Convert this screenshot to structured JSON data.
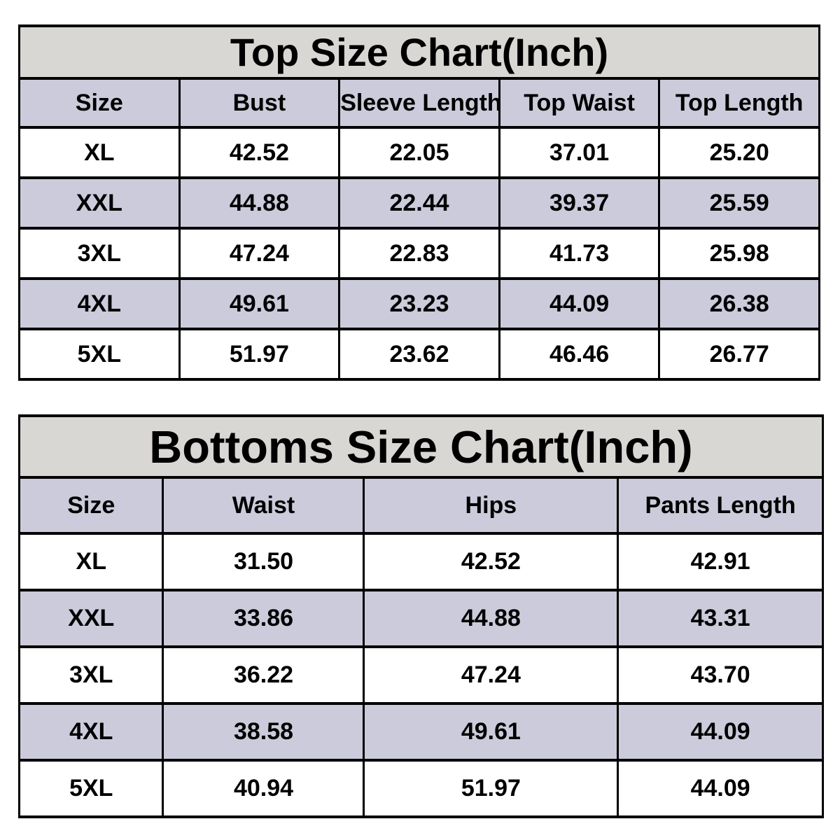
{
  "page": {
    "background": "#ffffff",
    "description_colors": {
      "title_bar_bg": "#d8d7d4",
      "header_and_alt_row_bg": "#cbcbdb",
      "row_bg": "#ffffff",
      "border": "#000000",
      "text": "#000000"
    }
  },
  "chart_data": [
    {
      "type": "table",
      "title": "Top Size Chart(Inch)",
      "columns": [
        "Size",
        "Bust",
        "Sleeve Length",
        "Top Waist",
        "Top Length"
      ],
      "rows": [
        [
          "XL",
          "42.52",
          "22.05",
          "37.01",
          "25.20"
        ],
        [
          "XXL",
          "44.88",
          "22.44",
          "39.37",
          "25.59"
        ],
        [
          "3XL",
          "47.24",
          "22.83",
          "41.73",
          "25.98"
        ],
        [
          "4XL",
          "49.61",
          "23.23",
          "44.09",
          "26.38"
        ],
        [
          "5XL",
          "51.97",
          "23.62",
          "46.46",
          "26.77"
        ]
      ],
      "layout": {
        "alternating_rows": "even rows shaded lavender",
        "all_text_bold": true,
        "units": "Inch"
      }
    },
    {
      "type": "table",
      "title": "Bottoms Size Chart(Inch)",
      "columns": [
        "Size",
        "Waist",
        "Hips",
        "Pants Length"
      ],
      "rows": [
        [
          "XL",
          "31.50",
          "42.52",
          "42.91"
        ],
        [
          "XXL",
          "33.86",
          "44.88",
          "43.31"
        ],
        [
          "3XL",
          "36.22",
          "47.24",
          "43.70"
        ],
        [
          "4XL",
          "38.58",
          "49.61",
          "44.09"
        ],
        [
          "5XL",
          "40.94",
          "51.97",
          "44.09"
        ]
      ],
      "layout": {
        "alternating_rows": "even rows shaded lavender",
        "all_text_bold": true,
        "units": "Inch"
      }
    }
  ]
}
